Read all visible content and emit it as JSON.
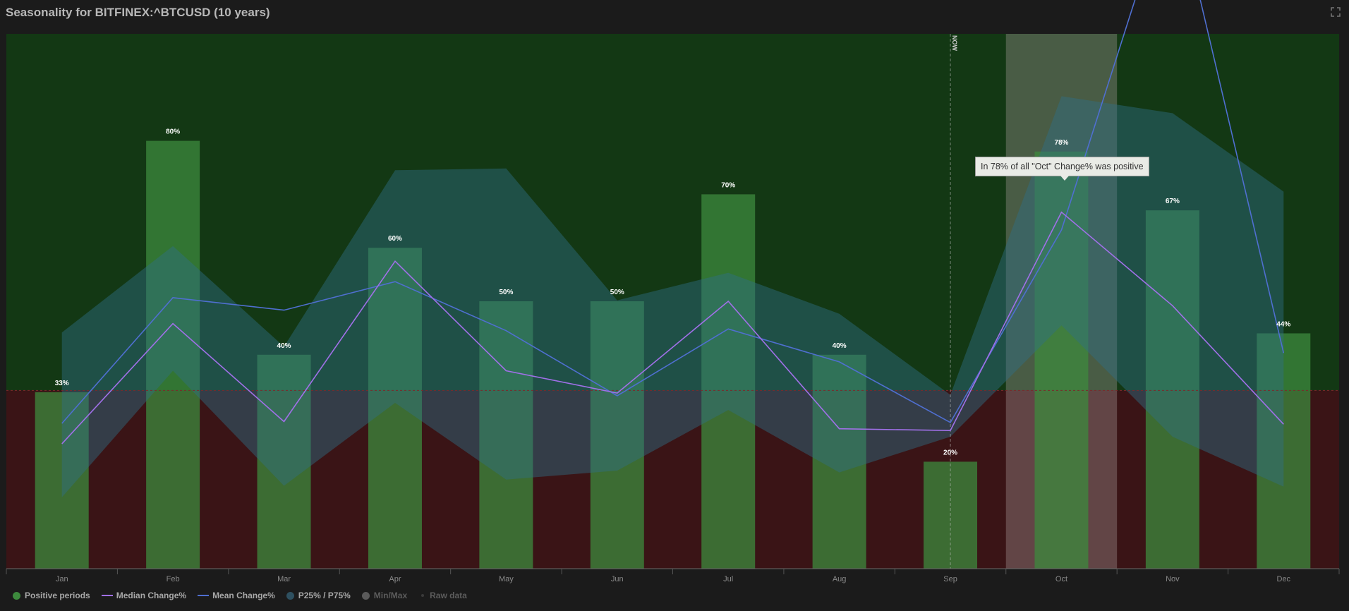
{
  "title": "Seasonality for BITFINEX:^BTCUSD (10 years)",
  "tooltip": "In 78% of all \"Oct\" Change% was positive",
  "now_label": "NOW",
  "legend": [
    {
      "label": "Positive periods",
      "kind": "dot",
      "color": "#3d8a3d",
      "active": true
    },
    {
      "label": "Median Change%",
      "kind": "line",
      "color": "#a070e8",
      "active": true
    },
    {
      "label": "Mean Change%",
      "kind": "line",
      "color": "#4f6fd0",
      "active": true
    },
    {
      "label": "P25% / P75%",
      "kind": "dot",
      "color": "#2e5060",
      "active": true
    },
    {
      "label": "Min/Max",
      "kind": "dot",
      "color": "#5a5a5a",
      "active": false
    },
    {
      "label": "Raw data",
      "kind": "small",
      "color": "#3a3a3a",
      "active": false
    }
  ],
  "colors": {
    "positive_bg": "#133814",
    "negative_bg": "#3a1416",
    "bar": "#3d8a3d",
    "band": "#2e6e86",
    "median": "#a070e8",
    "mean": "#4f6fd0",
    "highlight": "#b0a0a0"
  },
  "chart_data": {
    "type": "bar",
    "categories": [
      "Jan",
      "Feb",
      "Mar",
      "Apr",
      "May",
      "Jun",
      "Jul",
      "Aug",
      "Sep",
      "Oct",
      "Nov",
      "Dec"
    ],
    "positive_periods": [
      33,
      80,
      40,
      60,
      50,
      50,
      70,
      40,
      20,
      78,
      67,
      44
    ],
    "bar_labels": [
      "33%",
      "80%",
      "40%",
      "60%",
      "50%",
      "50%",
      "70%",
      "40%",
      "20%",
      "78%",
      "67%",
      "44%"
    ],
    "positive_ylim": [
      0,
      100
    ],
    "change_ylim": [
      -20,
      40
    ],
    "series": [
      {
        "name": "Median Change%",
        "values": [
          -6,
          7.5,
          -3.5,
          14.5,
          2.2,
          -0.3,
          10,
          -4.3,
          -4.5,
          20,
          9.5,
          -3.8
        ]
      },
      {
        "name": "Mean Change%",
        "values": [
          -3.7,
          10.4,
          9,
          12.2,
          6.7,
          -0.6,
          6.9,
          3.2,
          -3.6,
          18,
          57,
          4.2
        ]
      },
      {
        "name": "P25%",
        "values": [
          -12,
          2.2,
          -10.7,
          -1.4,
          -10,
          -9,
          -2.2,
          -9.2,
          -5.2,
          7.3,
          -5.2,
          -10.8
        ]
      },
      {
        "name": "P75%",
        "values": [
          6.5,
          16.2,
          4.9,
          24.7,
          24.9,
          10.1,
          13.2,
          8.6,
          -0.5,
          33,
          31.1,
          22.3
        ]
      }
    ],
    "highlight_category": "Oct",
    "current_category": "Sep"
  }
}
